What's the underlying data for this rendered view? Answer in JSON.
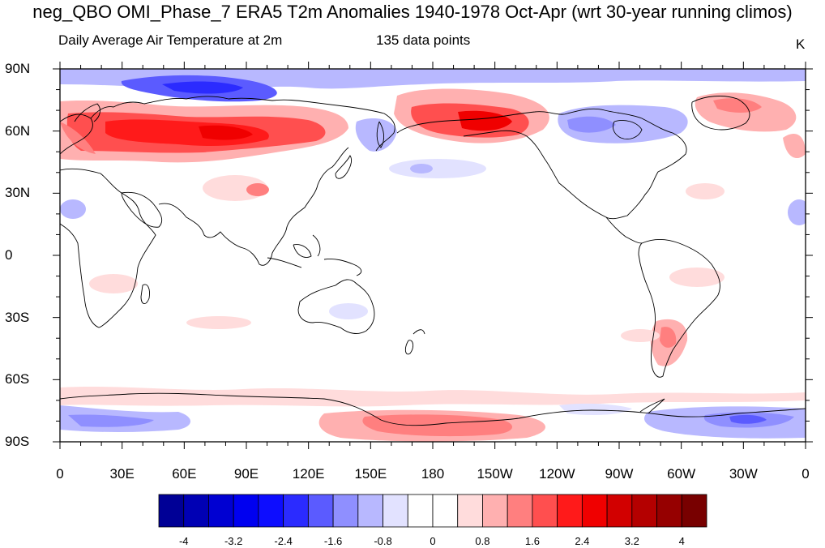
{
  "figure": {
    "title": "neg_QBO OMI_Phase_7 ERA5 T2m Anomalies 1940-1978 Oct-Apr (wrt 30-year running climos)",
    "subtitle_left": "Daily Average Air Temperature at 2m",
    "subtitle_mid": "135 data points",
    "units": "K"
  },
  "map": {
    "projection": "cylindrical-equidistant",
    "center_longitude": 180,
    "lat_labels": [
      "90N",
      "60N",
      "30N",
      "0",
      "30S",
      "60S",
      "90S"
    ],
    "lon_labels": [
      "0",
      "30E",
      "60E",
      "90E",
      "120E",
      "150E",
      "180",
      "150W",
      "120W",
      "90W",
      "60W",
      "30W",
      "0"
    ],
    "anomaly_regions": [
      {
        "name": "northern-eurasia-warm",
        "color": "#ff1a1a"
      },
      {
        "name": "alaska-warm",
        "color": "#f00000"
      },
      {
        "name": "antarctica-pacific-warm",
        "color": "#ff7f7f"
      },
      {
        "name": "arctic-ocean-cold",
        "color": "#5b5bff"
      },
      {
        "name": "canada-cold",
        "color": "#8f8fff"
      },
      {
        "name": "weddell-cold",
        "color": "#5b5bff"
      }
    ]
  },
  "colorbar": {
    "colors": [
      "#000096",
      "#0000b4",
      "#0000d2",
      "#0000f0",
      "#0d0dff",
      "#2b2bff",
      "#5b5bff",
      "#8f8fff",
      "#b8b8ff",
      "#e2e2ff",
      "#ffffff",
      "#ffffff",
      "#ffdcdc",
      "#ffb0b0",
      "#ff7f7f",
      "#ff4f4f",
      "#ff1a1a",
      "#f00000",
      "#d20000",
      "#b40000",
      "#960000",
      "#780000"
    ],
    "tick_labels": [
      "-4",
      "-3.2",
      "-2.4",
      "-1.6",
      "-0.8",
      "0",
      "0.8",
      "1.6",
      "2.4",
      "3.2",
      "4"
    ]
  }
}
